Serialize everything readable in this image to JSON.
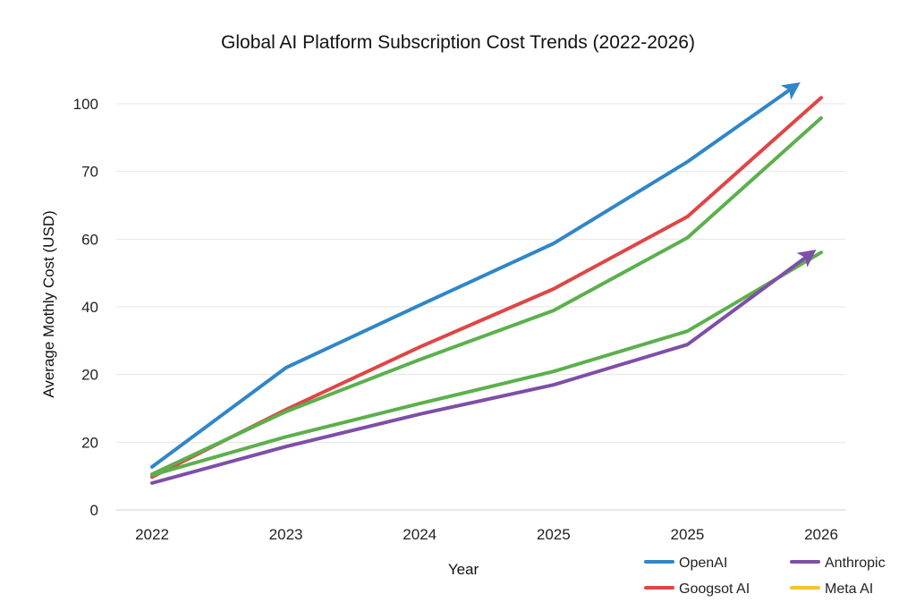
{
  "chart_data": {
    "type": "line",
    "title": "Global AI Platform Subscription Cost Trends (2022-2026)",
    "xlabel": "Year",
    "ylabel": "Average Mothly Cost (USD)",
    "categories": [
      "2022",
      "2023",
      "2024",
      "2025",
      "2025",
      "2026"
    ],
    "yticks": [
      "0",
      "20",
      "20",
      "40",
      "60",
      "70",
      "100"
    ],
    "ylim": [
      0,
      100
    ],
    "grid": true,
    "legend_position": "bottom-right",
    "series": [
      {
        "name": "OpenAI",
        "color": "#2f86c9",
        "arrow": true,
        "x": [
          0,
          1,
          2,
          3,
          4,
          4.79
        ],
        "values": [
          10.6,
          35,
          50.4,
          65.6,
          85.7,
          104
        ]
      },
      {
        "name": "Googsot AI",
        "color": "#e04545",
        "arrow": false,
        "x": [
          0,
          1,
          2,
          3,
          4,
          5
        ],
        "values": [
          8.1,
          24.7,
          40.1,
          54.4,
          72.2,
          101.5
        ]
      },
      {
        "color": "#5cb04c",
        "arrow": false,
        "x": [
          0,
          1,
          2,
          3,
          4,
          5
        ],
        "values": [
          8.8,
          24.2,
          37,
          49.1,
          67,
          96.5
        ]
      },
      {
        "color": "#5cb04c",
        "arrow": false,
        "x": [
          0,
          1,
          2,
          3,
          4,
          5
        ],
        "values": [
          8.6,
          18,
          26.2,
          34.1,
          44,
          63.4
        ]
      },
      {
        "name": "Anthropic",
        "color": "#7d4fa8",
        "arrow": true,
        "x": [
          0,
          1,
          2,
          3,
          4,
          4.91
        ],
        "values": [
          6.6,
          15.6,
          23.6,
          30.8,
          40.7,
          62.8
        ]
      }
    ],
    "legend": [
      {
        "name": "OpenAI",
        "color": "#2f86c9"
      },
      {
        "name": "Anthropic",
        "color": "#7d4fa8"
      },
      {
        "name": "Googsot AI",
        "color": "#e04545"
      },
      {
        "name": "Meta AI",
        "color": "#f5c431"
      }
    ]
  }
}
